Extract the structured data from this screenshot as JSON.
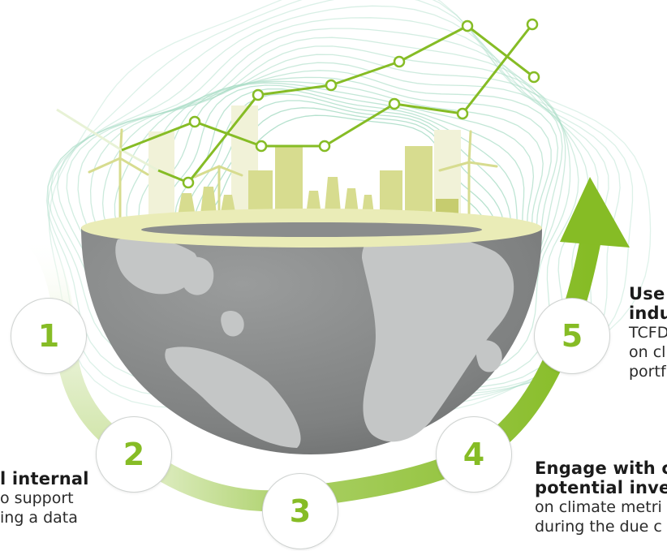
{
  "steps": [
    {
      "number": "1"
    },
    {
      "number": "2"
    },
    {
      "number": "3"
    },
    {
      "number": "4"
    },
    {
      "number": "5"
    }
  ],
  "left_text": {
    "heading": "l internal",
    "lines": [
      "o support",
      "ing a data"
    ]
  },
  "step4_text": {
    "heading_lines": [
      "Engage with c",
      "potential inve"
    ],
    "lines": [
      "on climate metri",
      "during the due c"
    ]
  },
  "step5_text": {
    "heading_lines": [
      "Use",
      "indu"
    ],
    "lines": [
      "TCFD",
      "on cl",
      "portf"
    ]
  },
  "colors": {
    "accent_green": "#86bc25",
    "light_green": "#c5dd8f",
    "contour_green": "#a8dcc5",
    "buildings": "#d7dc8f",
    "globe_gray": "#8a8c8c",
    "continent_gray": "#c4c6c6"
  }
}
